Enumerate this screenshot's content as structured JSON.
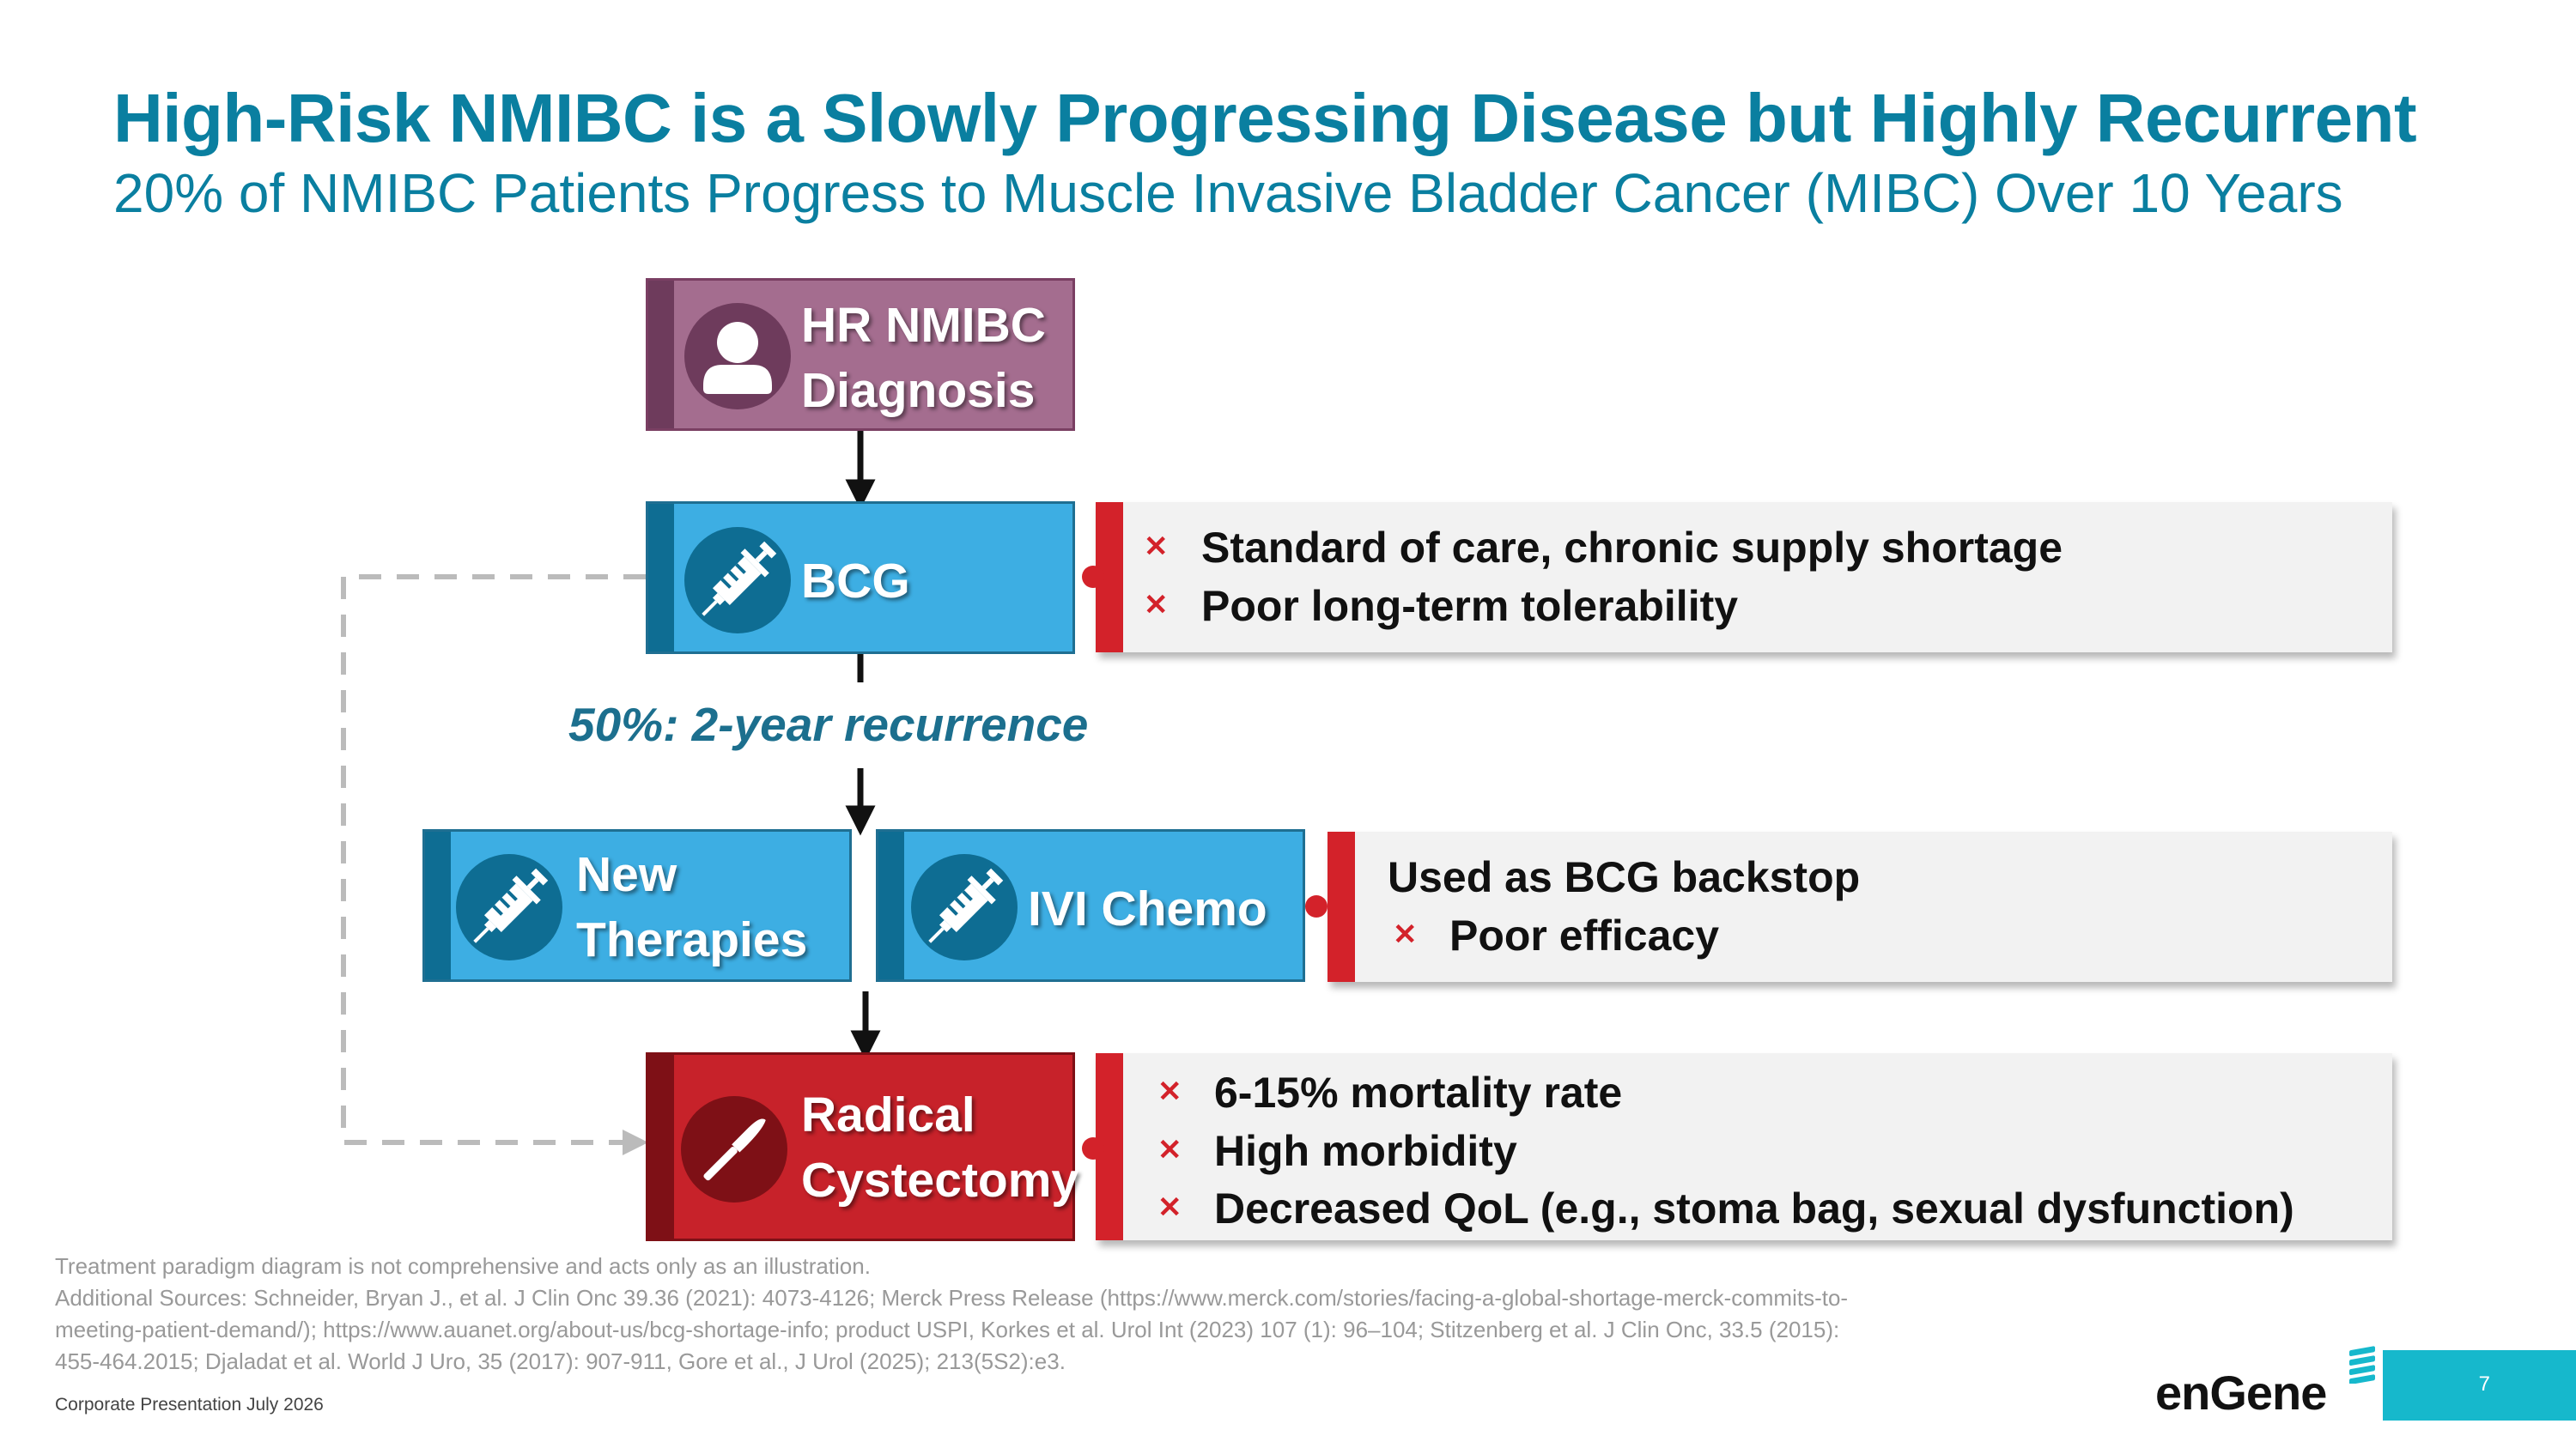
{
  "title": "High-Risk NMIBC is a Slowly Progressing Disease but Highly Recurrent",
  "subtitle": "20% of NMIBC Patients Progress to Muscle Invasive Bladder Cancer (MIBC) Over 10 Years",
  "boxes": {
    "diagnosis": {
      "line1": "HR NMIBC",
      "line2": "Diagnosis",
      "icon": "person-icon",
      "color": "#a46d8f"
    },
    "bcg": {
      "label": "BCG",
      "icon": "syringe-icon",
      "color": "#3daee3"
    },
    "new_therapies": {
      "line1": "New",
      "line2": "Therapies",
      "icon": "syringe-icon",
      "color": "#3daee3"
    },
    "ivi_chemo": {
      "label": "IVI Chemo",
      "icon": "syringe-icon",
      "color": "#3daee3"
    },
    "cystectomy": {
      "line1": "Radical",
      "line2": "Cystectomy",
      "icon": "scalpel-icon",
      "color": "#c7222a"
    }
  },
  "recurrence": "50%:  2-year recurrence",
  "panels": {
    "bcg": {
      "items": [
        "Standard of care, chronic supply shortage",
        "Poor long-term tolerability"
      ]
    },
    "ivi": {
      "heading": "Used as BCG backstop",
      "items": [
        "Poor efficacy"
      ]
    },
    "cystectomy": {
      "items": [
        "6-15% mortality rate",
        "High morbidity",
        "Decreased QoL (e.g., stoma bag, sexual dysfunction)"
      ]
    }
  },
  "bullet_symbol": "✕",
  "footnotes": [
    "Treatment paradigm diagram is not comprehensive and acts only as an illustration.",
    "Additional Sources: Schneider, Bryan J., et al. J Clin Onc 39.36 (2021): 4073-4126; Merck Press Release (https://www.merck.com/stories/facing-a-global-shortage-merck-commits-to-",
    "meeting-patient-demand/); https://www.auanet.org/about-us/bcg-shortage-info; product USPI, Korkes et al. Urol Int (2023) 107 (1): 96–104; Stitzenberg et al. J Clin Onc, 33.5 (2015):",
    "455-464.2015; Djaladat et al. World J Uro, 35 (2017): 907-911, Gore et al., J Urol (2025); 213(5S2):e3."
  ],
  "footer": {
    "presentation": "Corporate Presentation July 2026",
    "page_number": "7",
    "logo": "enGene"
  },
  "colors": {
    "accent": "#0a7fa0",
    "alert": "#d3222a",
    "teal": "#16b8cc"
  }
}
